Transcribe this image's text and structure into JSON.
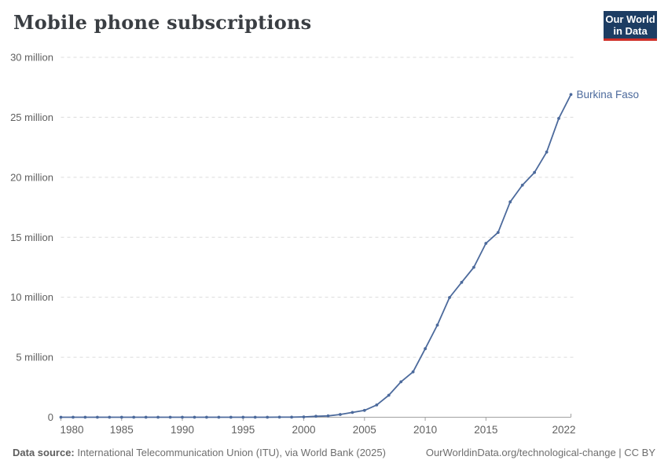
{
  "header": {
    "title": "Mobile phone subscriptions"
  },
  "logo": {
    "line1": "Our World",
    "line2": "in Data",
    "bg_color": "#1d3d63",
    "accent_color": "#cf2e27"
  },
  "chart_data": {
    "type": "line",
    "title": "Mobile phone subscriptions",
    "unit": "million",
    "x_range": [
      1980,
      2022
    ],
    "y_range_millions": [
      0,
      30
    ],
    "grid": "horizontal-dashed",
    "legend_position": "end-of-line-label",
    "x_ticks": [
      1980,
      1985,
      1990,
      1995,
      2000,
      2005,
      2010,
      2015,
      2022
    ],
    "x_tick_labels": [
      "1980",
      "1985",
      "1990",
      "1995",
      "2000",
      "2005",
      "2010",
      "2015",
      "2022"
    ],
    "y_ticks": [
      0,
      5,
      10,
      15,
      20,
      25,
      30
    ],
    "y_tick_labels": [
      "0",
      "5 million",
      "10 million",
      "15 million",
      "20 million",
      "25 million",
      "30 million"
    ],
    "colors": {
      "line": "#4c6a9c",
      "grid": "#dcdcdc",
      "axis": "#a1a1a1",
      "tick_text": "#606060"
    },
    "series": [
      {
        "name": "Burkina Faso",
        "years": [
          1980,
          1981,
          1982,
          1983,
          1984,
          1985,
          1986,
          1987,
          1988,
          1989,
          1990,
          1991,
          1992,
          1993,
          1994,
          1995,
          1996,
          1997,
          1998,
          1999,
          2000,
          2001,
          2002,
          2003,
          2004,
          2005,
          2006,
          2007,
          2008,
          2009,
          2010,
          2011,
          2012,
          2013,
          2014,
          2015,
          2016,
          2017,
          2018,
          2019,
          2020,
          2021,
          2022
        ],
        "values_millions": [
          0,
          0,
          0,
          0,
          0,
          0,
          0,
          0,
          0,
          0,
          0,
          0,
          0,
          0,
          0,
          0,
          0.002,
          0.003,
          0.004,
          0.005,
          0.025,
          0.076,
          0.113,
          0.227,
          0.398,
          0.572,
          1.02,
          1.83,
          2.95,
          3.78,
          5.71,
          7.68,
          9.98,
          11.24,
          12.5,
          14.49,
          15.4,
          17.95,
          19.34,
          20.4,
          22.1,
          24.9,
          26.9
        ]
      }
    ]
  },
  "footer": {
    "source_label": "Data source:",
    "source_text": " International Telecommunication Union (ITU), via World Bank (2025)",
    "right_text": "OurWorldinData.org/technological-change | CC BY"
  }
}
